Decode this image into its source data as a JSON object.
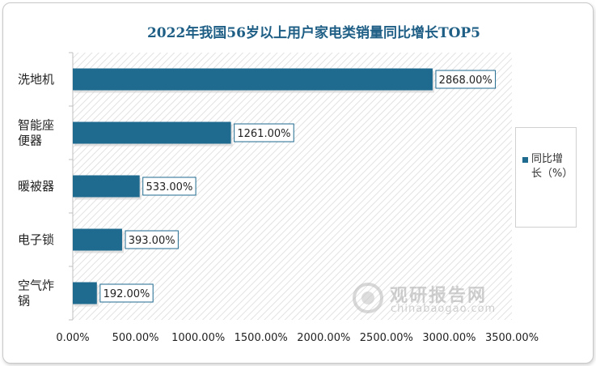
{
  "chart_data": {
    "type": "bar",
    "orientation": "horizontal",
    "title": "2022年我国56岁以上用户家电类销量同比增长TOP5",
    "categories": [
      "洗地机",
      "智能座\n便器",
      "暖被器",
      "电子锁",
      "空气炸\n锅"
    ],
    "series": [
      {
        "name": "同比增长（%）",
        "values": [
          2868.0,
          1261.0,
          533.0,
          393.0,
          192.0
        ],
        "labels": [
          "2868.00%",
          "1261.00%",
          "533.00%",
          "393.00%",
          "192.00%"
        ]
      }
    ],
    "xlim": [
      0,
      3500
    ],
    "xticks": [
      "0.00%",
      "500.00%",
      "1000.00%",
      "1500.00%",
      "2000.00%",
      "2500.00%",
      "3000.00%",
      "3500.00%"
    ],
    "grid": false,
    "legend_position": "right"
  },
  "colors": {
    "bar": "#1f6a8f",
    "label_border": "#1f6a8f",
    "title": "#1f5f86",
    "plot_hatch": "#e2e2e2"
  },
  "legend": {
    "label": "同比增长（%）"
  },
  "watermark": {
    "title": "观研报告网",
    "url": "chinabaogao.com"
  }
}
